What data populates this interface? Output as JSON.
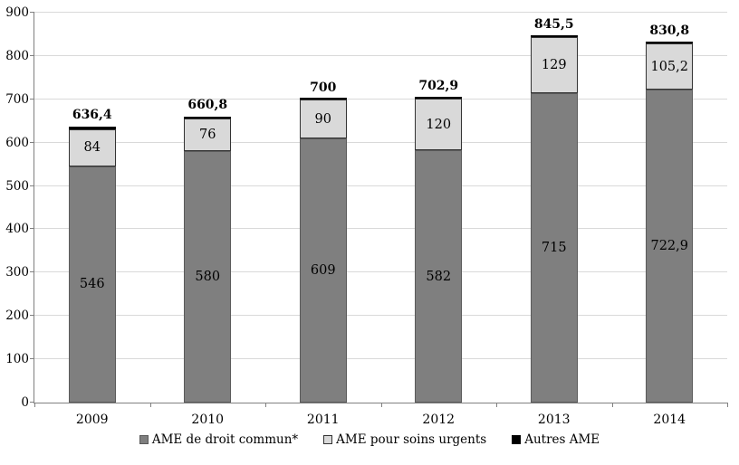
{
  "chart_data": {
    "type": "bar",
    "stacked": true,
    "title": "",
    "xlabel": "",
    "ylabel": "",
    "categories": [
      "2009",
      "2010",
      "2011",
      "2012",
      "2013",
      "2014"
    ],
    "series": [
      {
        "name": "AME de droit commun*",
        "color": "#7f7f7f",
        "border_color": "#5a5a5a",
        "values": [
          546,
          580,
          609,
          582,
          715,
          722.9
        ],
        "labels": [
          "546",
          "580",
          "609",
          "582",
          "715",
          "722,9"
        ]
      },
      {
        "name": "AME pour soins urgents",
        "color": "#d9d9d9",
        "border_color": "#333333",
        "values": [
          84,
          76,
          90,
          120,
          129,
          105.2
        ],
        "labels": [
          "84",
          "76",
          "90",
          "120",
          "129",
          "105,2"
        ]
      },
      {
        "name": "Autres AME",
        "color": "#000000",
        "border_color": "#000000",
        "values": [
          6.4,
          4.8,
          1,
          0.9,
          1.5,
          2.7
        ],
        "labels": [
          "",
          "",
          "",
          "",
          "",
          ""
        ]
      }
    ],
    "totals": {
      "values": [
        636.4,
        660.8,
        700,
        702.9,
        845.5,
        830.8
      ],
      "labels": [
        "636,4",
        "660,8",
        "700",
        "702,9",
        "845,5",
        "830,8"
      ]
    },
    "ylim": [
      0,
      900
    ],
    "yticks": [
      0,
      100,
      200,
      300,
      400,
      500,
      600,
      700,
      800,
      900
    ],
    "grid": true,
    "legend_position": "bottom"
  },
  "style_colors": {
    "gridline": "#d9d9d9",
    "axis": "#808080",
    "background": "#ffffff",
    "text": "#000000"
  }
}
